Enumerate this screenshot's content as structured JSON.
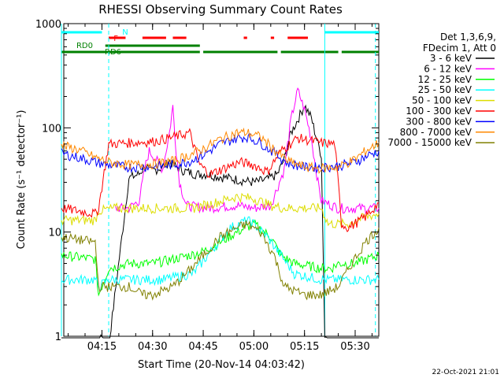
{
  "chart_data": {
    "type": "line",
    "title": "RHESSI Observing Summary Count Rates",
    "xlabel": "Start Time (20-Nov-14 04:03:42)",
    "ylabel": "Count Rate (s⁻¹ detector⁻¹)",
    "ylim": [
      1,
      1000
    ],
    "y_log": true,
    "xlim": [
      "04:03:42",
      "05:37:00"
    ],
    "grid": false,
    "legend_position": "right",
    "x_ticks": [
      "04:15",
      "04:30",
      "04:45",
      "05:00",
      "05:15",
      "05:30"
    ],
    "y_ticks": [
      "1",
      "10",
      "100",
      "1000"
    ],
    "legend_header": [
      "Det 1,3,6,9,",
      "FDecim 1, Att 0"
    ],
    "series": [
      {
        "name": "3 - 6 keV",
        "color": "#000000",
        "points": [
          [
            "04:03",
            "0.8"
          ],
          [
            "04:14",
            "0.8"
          ],
          [
            "04:15",
            "1.0"
          ],
          [
            "04:17",
            "0.8"
          ],
          [
            "04:23",
            "33"
          ],
          [
            "04:26",
            "36"
          ],
          [
            "04:28",
            "44"
          ],
          [
            "04:29",
            "38"
          ],
          [
            "04:33",
            "42"
          ],
          [
            "04:35",
            "48"
          ],
          [
            "04:37",
            "42"
          ],
          [
            "04:40",
            "38"
          ],
          [
            "04:43",
            "36"
          ],
          [
            "04:46",
            "36"
          ],
          [
            "04:50",
            "34"
          ],
          [
            "04:55",
            "32"
          ],
          [
            "05:00",
            "30"
          ],
          [
            "05:04",
            "32"
          ],
          [
            "05:07",
            "36"
          ],
          [
            "05:09",
            "50"
          ],
          [
            "05:11",
            "90"
          ],
          [
            "05:13",
            "120"
          ],
          [
            "05:15",
            "165"
          ],
          [
            "05:17",
            "125"
          ],
          [
            "05:19",
            "70"
          ],
          [
            "05:20",
            "55"
          ],
          [
            "05:21",
            "1.0"
          ],
          [
            "05:25",
            "0.8"
          ],
          [
            "05:37",
            "0.8"
          ]
        ]
      },
      {
        "name": "6 - 12 keV",
        "color": "#ff00ff",
        "points": [
          [
            "04:19",
            "17"
          ],
          [
            "04:23",
            "17"
          ],
          [
            "04:26",
            "20"
          ],
          [
            "04:28",
            "45"
          ],
          [
            "04:29",
            "60"
          ],
          [
            "04:31",
            "50"
          ],
          [
            "04:33",
            "40"
          ],
          [
            "04:35",
            "90"
          ],
          [
            "04:36",
            "160"
          ],
          [
            "04:37",
            "60"
          ],
          [
            "04:38",
            "30"
          ],
          [
            "04:40",
            "18"
          ],
          [
            "04:46",
            "17"
          ],
          [
            "04:55",
            "18"
          ],
          [
            "05:00",
            "17"
          ],
          [
            "05:05",
            "18"
          ],
          [
            "05:09",
            "40"
          ],
          [
            "05:11",
            "120"
          ],
          [
            "05:13",
            "230"
          ],
          [
            "05:15",
            "150"
          ],
          [
            "05:17",
            "80"
          ],
          [
            "05:19",
            "30"
          ],
          [
            "05:20",
            "20"
          ],
          [
            "05:25",
            "17"
          ],
          [
            "05:37",
            "17"
          ]
        ]
      },
      {
        "name": "12 - 25 keV",
        "color": "#00ff00",
        "points": [
          [
            "04:03",
            "6"
          ],
          [
            "04:13",
            "5.5"
          ],
          [
            "04:14",
            "2.5"
          ],
          [
            "04:17",
            "4.5"
          ],
          [
            "04:23",
            "5"
          ],
          [
            "04:30",
            "5"
          ],
          [
            "04:36",
            "5.5"
          ],
          [
            "04:41",
            "6"
          ],
          [
            "04:45",
            "6.5"
          ],
          [
            "04:50",
            "8"
          ],
          [
            "04:55",
            "10"
          ],
          [
            "05:00",
            "12"
          ],
          [
            "05:05",
            "9"
          ],
          [
            "05:08",
            "6"
          ],
          [
            "05:12",
            "5"
          ],
          [
            "05:20",
            "4.5"
          ],
          [
            "05:23",
            "4.5"
          ],
          [
            "05:25",
            "5"
          ],
          [
            "05:30",
            "5"
          ],
          [
            "05:37",
            "6"
          ]
        ]
      },
      {
        "name": "25 - 50 keV",
        "color": "#00ffff",
        "points": [
          [
            "04:03",
            "3.5"
          ],
          [
            "04:13",
            "3.5"
          ],
          [
            "04:14",
            "3"
          ],
          [
            "04:17",
            "3.5"
          ],
          [
            "04:23",
            "3.5"
          ],
          [
            "04:33",
            "3.5"
          ],
          [
            "04:42",
            "4"
          ],
          [
            "04:48",
            "7"
          ],
          [
            "04:53",
            "11"
          ],
          [
            "04:58",
            "13"
          ],
          [
            "05:00",
            "12"
          ],
          [
            "05:04",
            "9"
          ],
          [
            "05:08",
            "6"
          ],
          [
            "05:12",
            "4"
          ],
          [
            "05:20",
            "3.5"
          ],
          [
            "05:25",
            "3.5"
          ],
          [
            "05:37",
            "3.5"
          ]
        ]
      },
      {
        "name": "50 - 100 keV",
        "color": "#dddd00",
        "points": [
          [
            "04:03",
            "13"
          ],
          [
            "04:13",
            "13"
          ],
          [
            "04:14",
            "16"
          ],
          [
            "04:19",
            "17"
          ],
          [
            "04:23",
            "17"
          ],
          [
            "04:35",
            "17"
          ],
          [
            "04:42",
            "17"
          ],
          [
            "04:48",
            "19"
          ],
          [
            "04:55",
            "22"
          ],
          [
            "05:00",
            "21"
          ],
          [
            "05:05",
            "18"
          ],
          [
            "05:09",
            "17"
          ],
          [
            "05:20",
            "17"
          ],
          [
            "05:22",
            "12"
          ],
          [
            "05:28",
            "12"
          ],
          [
            "05:33",
            "14"
          ],
          [
            "05:37",
            "15"
          ]
        ]
      },
      {
        "name": "100 - 300 keV",
        "color": "#ff0000",
        "points": [
          [
            "04:03",
            "17"
          ],
          [
            "04:13",
            "15"
          ],
          [
            "04:14",
            "17"
          ],
          [
            "04:17",
            "70"
          ],
          [
            "04:23",
            "72"
          ],
          [
            "04:30",
            "74"
          ],
          [
            "04:35",
            "80"
          ],
          [
            "04:41",
            "90"
          ],
          [
            "04:44",
            "44"
          ],
          [
            "04:47",
            "36"
          ],
          [
            "04:52",
            "42"
          ],
          [
            "04:56",
            "47"
          ],
          [
            "05:00",
            "44"
          ],
          [
            "05:04",
            "38"
          ],
          [
            "05:08",
            "60"
          ],
          [
            "05:13",
            "80"
          ],
          [
            "05:20",
            "72"
          ],
          [
            "05:24",
            "70"
          ],
          [
            "05:26",
            "12"
          ],
          [
            "05:28",
            "11"
          ],
          [
            "05:33",
            "14"
          ],
          [
            "05:37",
            "19"
          ]
        ]
      },
      {
        "name": "300 - 800 keV",
        "color": "#0000ff",
        "points": [
          [
            "04:03",
            "57"
          ],
          [
            "04:08",
            "52"
          ],
          [
            "04:13",
            "47"
          ],
          [
            "04:17",
            "44"
          ],
          [
            "04:23",
            "42"
          ],
          [
            "04:30",
            "43"
          ],
          [
            "04:36",
            "44"
          ],
          [
            "04:41",
            "48"
          ],
          [
            "04:45",
            "55"
          ],
          [
            "04:50",
            "70"
          ],
          [
            "04:55",
            "80"
          ],
          [
            "04:58",
            "82"
          ],
          [
            "05:02",
            "72"
          ],
          [
            "05:06",
            "58"
          ],
          [
            "05:10",
            "46"
          ],
          [
            "05:15",
            "42"
          ],
          [
            "05:20",
            "42"
          ],
          [
            "05:25",
            "43"
          ],
          [
            "05:30",
            "47"
          ],
          [
            "05:33",
            "53"
          ],
          [
            "05:37",
            "60"
          ]
        ]
      },
      {
        "name": "800 - 7000 keV",
        "color": "#ff8800",
        "points": [
          [
            "04:03",
            "68"
          ],
          [
            "04:08",
            "62"
          ],
          [
            "04:13",
            "52"
          ],
          [
            "04:17",
            "47"
          ],
          [
            "04:23",
            "44"
          ],
          [
            "04:30",
            "45"
          ],
          [
            "04:36",
            "48"
          ],
          [
            "04:41",
            "55"
          ],
          [
            "04:45",
            "63"
          ],
          [
            "04:50",
            "78"
          ],
          [
            "04:55",
            "90"
          ],
          [
            "04:58",
            "90"
          ],
          [
            "05:02",
            "82"
          ],
          [
            "05:06",
            "62"
          ],
          [
            "05:10",
            "48"
          ],
          [
            "05:15",
            "42"
          ],
          [
            "05:20",
            "41"
          ],
          [
            "05:25",
            "42"
          ],
          [
            "05:30",
            "50"
          ],
          [
            "05:33",
            "60"
          ],
          [
            "05:37",
            "72"
          ]
        ]
      },
      {
        "name": "7000 - 15000 keV",
        "color": "#808000",
        "points": [
          [
            "04:03",
            "9"
          ],
          [
            "04:13",
            "8"
          ],
          [
            "04:14",
            "3"
          ],
          [
            "04:17",
            "3"
          ],
          [
            "04:23",
            "3"
          ],
          [
            "04:27",
            "2.5"
          ],
          [
            "04:30",
            "2.5"
          ],
          [
            "04:36",
            "3"
          ],
          [
            "04:40",
            "4"
          ],
          [
            "04:45",
            "6"
          ],
          [
            "04:50",
            "9"
          ],
          [
            "04:55",
            "11"
          ],
          [
            "04:58",
            "12"
          ],
          [
            "05:02",
            "10"
          ],
          [
            "05:06",
            "6"
          ],
          [
            "05:09",
            "3"
          ],
          [
            "05:15",
            "2.5"
          ],
          [
            "05:20",
            "2.5"
          ],
          [
            "05:25",
            "3"
          ],
          [
            "05:29",
            "5"
          ],
          [
            "05:33",
            "8"
          ],
          [
            "05:37",
            "11"
          ]
        ]
      }
    ],
    "flag_bars": [
      {
        "label": "N",
        "color": "#00ffff",
        "intervals": [
          [
            "04:03",
            "04:15"
          ],
          [
            "05:21",
            "05:37"
          ]
        ]
      },
      {
        "label": "F",
        "color": "#ff0000",
        "intervals": [
          [
            "04:17",
            "04:22"
          ],
          [
            "04:27",
            "04:34"
          ],
          [
            "04:36",
            "04:40"
          ],
          [
            "04:57",
            "04:58"
          ],
          [
            "05:05",
            "05:06"
          ],
          [
            "05:10",
            "05:16"
          ]
        ]
      },
      {
        "label": "RD0",
        "color": "#008000",
        "intervals": [
          [
            "04:03",
            "04:44"
          ],
          [
            "04:45",
            "05:07"
          ],
          [
            "05:08",
            "05:25"
          ],
          [
            "05:26",
            "05:37"
          ]
        ]
      },
      {
        "label": "RD6",
        "color": "#008000",
        "intervals": [
          [
            "04:16",
            "04:44"
          ]
        ]
      }
    ],
    "vertical_markers": [
      {
        "time": "04:03",
        "color": "#00ffff",
        "style": "solid"
      },
      {
        "time": "04:17",
        "color": "#00ffff",
        "style": "dashed"
      },
      {
        "time": "05:21",
        "color": "#00ffff",
        "style": "solid"
      },
      {
        "time": "05:36",
        "color": "#00ffff",
        "style": "dashed"
      }
    ]
  },
  "footer": {
    "timestamp": "22-Oct-2021 21:01"
  }
}
